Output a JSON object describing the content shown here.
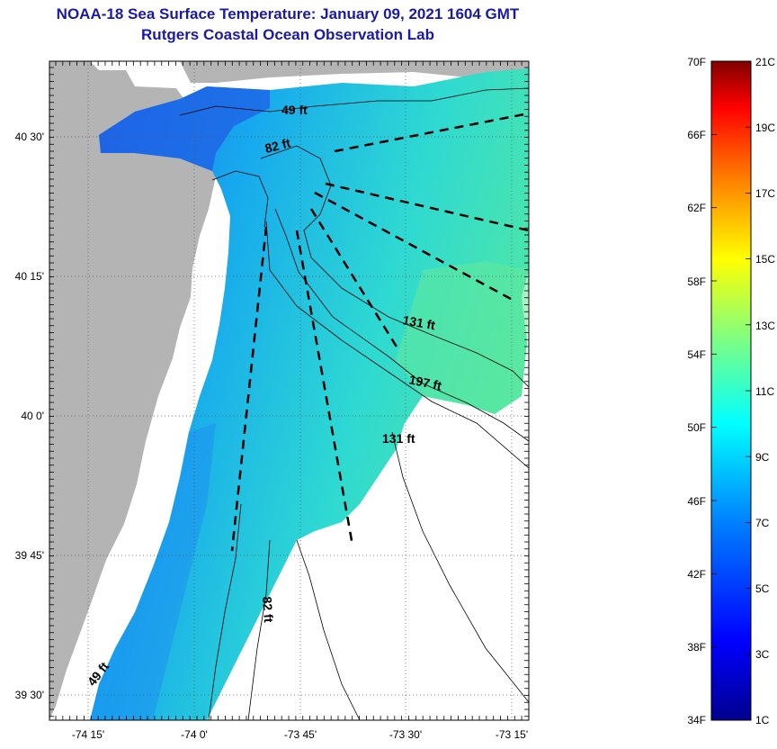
{
  "header": {
    "title": "NOAA-18 Sea Surface Temperature:  January 09, 2021 1604 GMT",
    "subtitle": "Rutgers Coastal Ocean Observation Lab"
  },
  "map": {
    "lon_labels": [
      "-74 15'",
      "-74 0'",
      "-73 45'",
      "-73 30'",
      "-73 15'"
    ],
    "lat_labels": [
      "40 30'",
      "40 15'",
      "40 0'",
      "39 45'",
      "39 30'"
    ],
    "contour_labels": [
      "49 ft",
      "82 ft",
      "131 ft",
      "197 ft",
      "131 ft",
      "82 ft",
      "49 ft"
    ],
    "colors": {
      "land": "#b4b4b4",
      "no_data": "#ffffff"
    }
  },
  "colorbar": {
    "fahrenheit_labels": [
      "70F",
      "66F",
      "62F",
      "58F",
      "54F",
      "50F",
      "46F",
      "42F",
      "38F",
      "34F"
    ],
    "celsius_labels": [
      "21C",
      "19C",
      "17C",
      "15C",
      "13C",
      "11C",
      "9C",
      "7C",
      "5C",
      "3C",
      "1C"
    ],
    "colors": [
      "#00008f",
      "#0000ff",
      "#0080ff",
      "#00ffff",
      "#80ff80",
      "#ffff00",
      "#ff8000",
      "#ff0000",
      "#800000"
    ]
  }
}
